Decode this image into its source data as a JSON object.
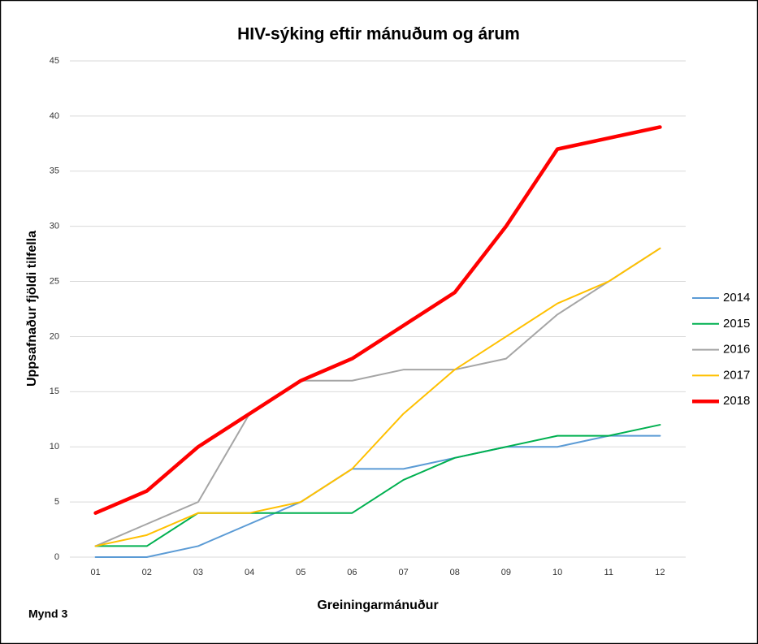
{
  "chart_data": {
    "type": "line",
    "title": "HIV-sýking eftir mánuðum og árum",
    "xlabel": "Greiningarmánuður",
    "ylabel": "Uppsafnaður fjöldi tilfella",
    "annotation": "Mynd 3",
    "categories": [
      "01",
      "02",
      "03",
      "04",
      "05",
      "06",
      "07",
      "08",
      "09",
      "10",
      "11",
      "12"
    ],
    "series": [
      {
        "name": "2014",
        "color": "#5b9bd5",
        "linewidth": 2,
        "values": [
          0,
          0,
          1,
          3,
          5,
          8,
          8,
          9,
          10,
          10,
          11,
          11
        ]
      },
      {
        "name": "2015",
        "color": "#00b050",
        "linewidth": 2,
        "values": [
          1,
          1,
          4,
          4,
          4,
          4,
          7,
          9,
          10,
          11,
          11,
          12
        ]
      },
      {
        "name": "2016",
        "color": "#a5a5a5",
        "linewidth": 2,
        "values": [
          1,
          3,
          5,
          13,
          16,
          16,
          17,
          17,
          18,
          22,
          25,
          28
        ]
      },
      {
        "name": "2017",
        "color": "#ffc000",
        "linewidth": 2,
        "values": [
          1,
          2,
          4,
          4,
          5,
          8,
          13,
          17,
          20,
          23,
          25,
          28
        ]
      },
      {
        "name": "2018",
        "color": "#ff0000",
        "linewidth": 4.5,
        "values": [
          4,
          6,
          10,
          13,
          16,
          18,
          21,
          24,
          30,
          37,
          38,
          39
        ]
      }
    ],
    "ylim": [
      0,
      45
    ],
    "yticks": [
      0,
      5,
      10,
      15,
      20,
      25,
      30,
      35,
      40,
      45
    ],
    "grid": true,
    "legend": "right"
  }
}
